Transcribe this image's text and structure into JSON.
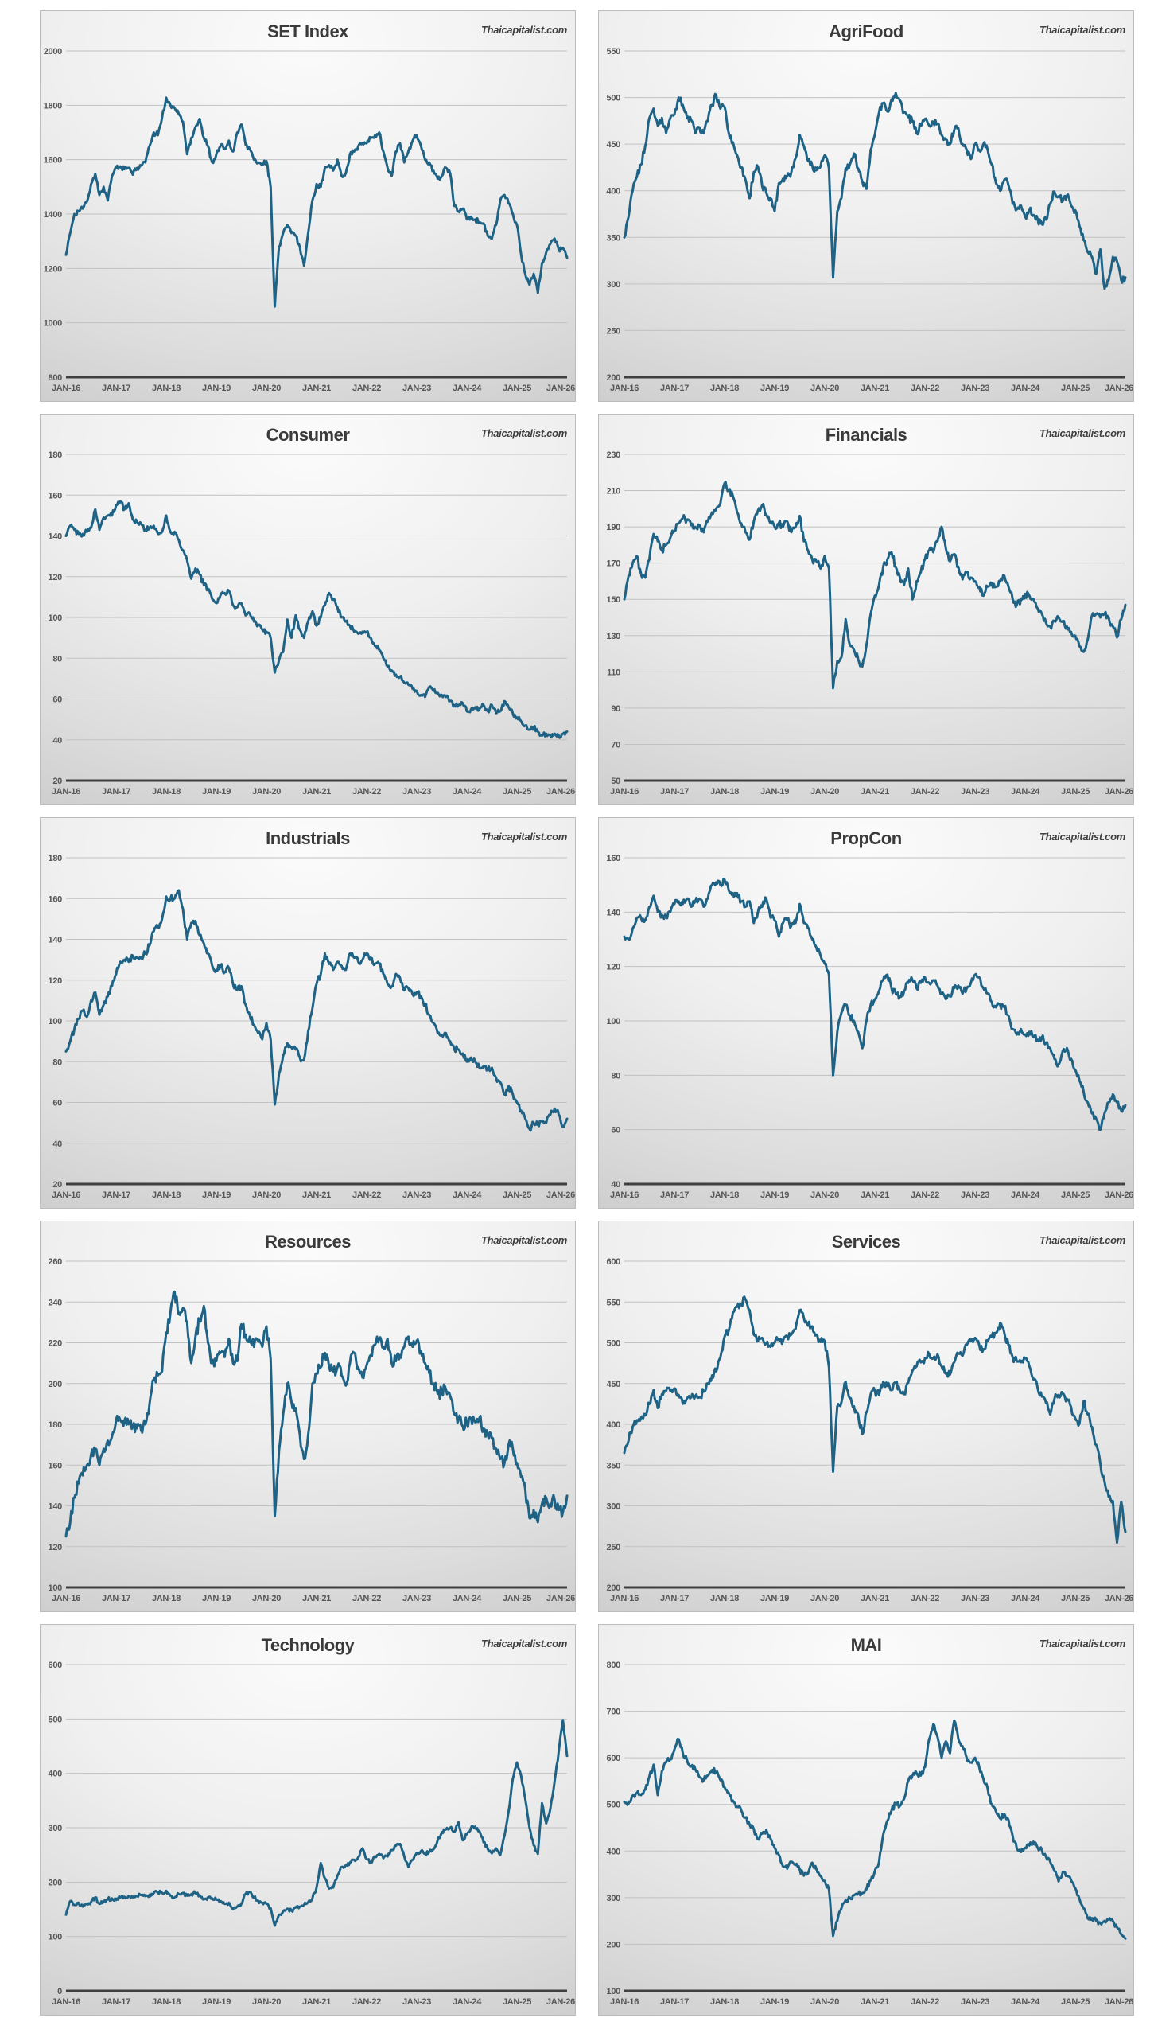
{
  "page": {
    "watermark": "Thaicapitalist.com"
  },
  "colors": {
    "line": "#1e6385",
    "grid": "#c1c1c1",
    "axis": "#3f3f3f",
    "label": "#575757",
    "panel_border": "#bcbcbc"
  },
  "x_axis": {
    "labels": [
      "JAN-16",
      "JAN-17",
      "JAN-18",
      "JAN-19",
      "JAN-20",
      "JAN-21",
      "JAN-22",
      "JAN-23",
      "JAN-24",
      "JAN-25",
      "JAN-26"
    ]
  },
  "chart_data": [
    {
      "type": "line",
      "title": "SET Index",
      "ylim": [
        800,
        2000
      ],
      "ytick_step": 200,
      "grid": true,
      "legend": "none",
      "x_start": "JAN-16",
      "x_end": "JAN-26",
      "points_frequency": "monthly",
      "jitter": 10,
      "values": [
        1250,
        1330,
        1400,
        1410,
        1420,
        1445,
        1510,
        1548,
        1470,
        1500,
        1450,
        1540,
        1570,
        1575,
        1565,
        1570,
        1545,
        1570,
        1578,
        1590,
        1650,
        1700,
        1690,
        1755,
        1828,
        1800,
        1790,
        1768,
        1740,
        1620,
        1680,
        1720,
        1750,
        1680,
        1650,
        1590,
        1620,
        1650,
        1640,
        1670,
        1630,
        1700,
        1730,
        1655,
        1640,
        1600,
        1590,
        1580,
        1595,
        1500,
        1060,
        1280,
        1330,
        1360,
        1330,
        1320,
        1280,
        1210,
        1330,
        1450,
        1510,
        1500,
        1570,
        1580,
        1560,
        1600,
        1540,
        1550,
        1620,
        1630,
        1650,
        1660,
        1660,
        1680,
        1690,
        1700,
        1630,
        1570,
        1540,
        1630,
        1660,
        1590,
        1630,
        1670,
        1690,
        1650,
        1600,
        1590,
        1560,
        1530,
        1540,
        1570,
        1550,
        1430,
        1410,
        1420,
        1380,
        1390,
        1380,
        1370,
        1365,
        1320,
        1310,
        1360,
        1450,
        1470,
        1440,
        1400,
        1360,
        1250,
        1180,
        1140,
        1180,
        1110,
        1220,
        1260,
        1290,
        1310,
        1270,
        1275,
        1240
      ]
    },
    {
      "type": "line",
      "title": "AgriFood",
      "ylim": [
        200,
        550
      ],
      "ytick_step": 50,
      "grid": true,
      "legend": "none",
      "x_start": "JAN-16",
      "x_end": "JAN-26",
      "points_frequency": "monthly",
      "jitter": 4,
      "values": [
        350,
        372,
        400,
        415,
        428,
        448,
        478,
        488,
        470,
        478,
        462,
        478,
        482,
        500,
        492,
        478,
        476,
        462,
        468,
        462,
        475,
        492,
        503,
        488,
        490,
        462,
        452,
        438,
        425,
        412,
        392,
        420,
        426,
        405,
        398,
        392,
        378,
        408,
        413,
        416,
        420,
        435,
        460,
        448,
        432,
        427,
        422,
        426,
        438,
        424,
        307,
        378,
        392,
        424,
        428,
        440,
        424,
        410,
        402,
        444,
        460,
        484,
        494,
        485,
        498,
        505,
        497,
        484,
        479,
        474,
        462,
        470,
        477,
        470,
        474,
        472,
        460,
        455,
        450,
        465,
        467,
        450,
        444,
        434,
        450,
        444,
        450,
        444,
        428,
        408,
        400,
        412,
        406,
        386,
        380,
        384,
        372,
        379,
        374,
        369,
        364,
        369,
        386,
        399,
        394,
        389,
        395,
        384,
        379,
        362,
        347,
        334,
        329,
        311,
        337,
        295,
        304,
        329,
        324,
        304,
        307
      ]
    },
    {
      "type": "line",
      "title": "Consumer",
      "ylim": [
        20,
        180
      ],
      "ytick_step": 20,
      "grid": true,
      "legend": "none",
      "x_start": "JAN-16",
      "x_end": "JAN-26",
      "points_frequency": "monthly",
      "jitter": 1.3,
      "values": [
        140,
        145,
        143,
        141,
        141,
        142,
        144,
        153,
        143,
        149,
        150,
        150,
        155,
        157,
        153,
        156,
        148,
        147,
        146,
        143,
        144,
        145,
        141,
        142,
        150,
        142,
        142,
        138,
        133,
        128,
        119,
        124,
        121,
        116,
        114,
        109,
        107,
        111,
        112,
        113,
        106,
        105,
        107,
        101,
        102,
        98,
        96,
        94,
        93,
        90,
        73,
        79,
        83,
        99,
        90,
        101,
        94,
        90,
        98,
        103,
        96,
        100,
        106,
        112,
        109,
        105,
        100,
        98,
        96,
        93,
        92,
        93,
        93,
        90,
        86,
        84,
        80,
        76,
        74,
        72,
        71,
        68,
        67,
        65,
        64,
        62,
        61,
        66,
        64,
        63,
        62,
        61,
        59,
        57,
        57,
        58,
        54,
        55,
        56,
        55,
        57,
        54,
        57,
        53,
        54,
        59,
        56,
        53,
        51,
        49,
        47,
        45,
        46,
        44,
        42,
        43,
        42,
        43,
        42,
        43,
        44
      ]
    },
    {
      "type": "line",
      "title": "Financials",
      "ylim": [
        50,
        230
      ],
      "ytick_step": 20,
      "grid": true,
      "legend": "none",
      "x_start": "JAN-16",
      "x_end": "JAN-26",
      "points_frequency": "monthly",
      "jitter": 2,
      "values": [
        150,
        163,
        170,
        174,
        164,
        162,
        172,
        186,
        182,
        177,
        180,
        184,
        188,
        192,
        195,
        194,
        191,
        190,
        191,
        187,
        193,
        198,
        200,
        203,
        214,
        210,
        207,
        198,
        192,
        187,
        183,
        193,
        199,
        202,
        197,
        192,
        190,
        192,
        190,
        193,
        187,
        190,
        196,
        182,
        177,
        172,
        171,
        167,
        174,
        167,
        101,
        116,
        118,
        139,
        125,
        122,
        117,
        113,
        125,
        142,
        152,
        158,
        168,
        172,
        176,
        168,
        162,
        158,
        167,
        150,
        160,
        165,
        172,
        177,
        176,
        182,
        190,
        178,
        171,
        175,
        168,
        161,
        165,
        162,
        160,
        157,
        152,
        157,
        159,
        157,
        160,
        163,
        157,
        150,
        147,
        150,
        153,
        152,
        150,
        145,
        142,
        137,
        135,
        138,
        140,
        138,
        135,
        132,
        130,
        124,
        121,
        128,
        141,
        142,
        140,
        142,
        140,
        135,
        129,
        139,
        147
      ]
    },
    {
      "type": "line",
      "title": "Industrials",
      "ylim": [
        20,
        180
      ],
      "ytick_step": 20,
      "grid": true,
      "legend": "none",
      "x_start": "JAN-16",
      "x_end": "JAN-26",
      "points_frequency": "monthly",
      "jitter": 1.6,
      "values": [
        85,
        90,
        96,
        101,
        105,
        102,
        110,
        114,
        103,
        108,
        112,
        117,
        123,
        129,
        130,
        129,
        132,
        131,
        131,
        133,
        137,
        144,
        146,
        150,
        161,
        160,
        160,
        164,
        155,
        140,
        148,
        149,
        142,
        138,
        133,
        127,
        125,
        127,
        124,
        126,
        118,
        115,
        117,
        108,
        103,
        98,
        94,
        91,
        99,
        91,
        59,
        74,
        83,
        89,
        87,
        86,
        82,
        81,
        95,
        106,
        118,
        123,
        133,
        128,
        125,
        129,
        127,
        125,
        133,
        131,
        129,
        130,
        133,
        131,
        128,
        128,
        123,
        118,
        117,
        123,
        121,
        115,
        116,
        113,
        114,
        112,
        108,
        103,
        99,
        94,
        93,
        94,
        90,
        86,
        86,
        84,
        80,
        82,
        80,
        77,
        78,
        76,
        77,
        72,
        70,
        64,
        68,
        64,
        60,
        56,
        52,
        47,
        50,
        49,
        51,
        50,
        54,
        57,
        54,
        48,
        52
      ]
    },
    {
      "type": "line",
      "title": "PropCon",
      "ylim": [
        40,
        160
      ],
      "ytick_step": 20,
      "grid": true,
      "legend": "none",
      "x_start": "JAN-16",
      "x_end": "JAN-26",
      "points_frequency": "monthly",
      "jitter": 1.3,
      "values": [
        131,
        130,
        134,
        138,
        138,
        137,
        142,
        146,
        140,
        139,
        138,
        140,
        143,
        144,
        143,
        145,
        142,
        144,
        145,
        142,
        145,
        150,
        151,
        150,
        152,
        148,
        147,
        147,
        144,
        142,
        144,
        136,
        140,
        142,
        145,
        138,
        137,
        131,
        136,
        137,
        135,
        136,
        143,
        136,
        134,
        130,
        127,
        124,
        121,
        117,
        80,
        96,
        103,
        106,
        102,
        100,
        96,
        90,
        100,
        106,
        108,
        111,
        115,
        117,
        112,
        110,
        109,
        111,
        114,
        115,
        112,
        114,
        116,
        114,
        115,
        113,
        110,
        108,
        109,
        112,
        113,
        110,
        112,
        114,
        117,
        116,
        112,
        110,
        107,
        105,
        106,
        105,
        102,
        97,
        95,
        97,
        95,
        96,
        94,
        93,
        94,
        92,
        90,
        86,
        84,
        89,
        90,
        86,
        82,
        78,
        74,
        70,
        66,
        64,
        60,
        66,
        70,
        73,
        70,
        67,
        69
      ]
    },
    {
      "type": "line",
      "title": "Resources",
      "ylim": [
        100,
        260
      ],
      "ytick_step": 20,
      "grid": true,
      "legend": "none",
      "x_start": "JAN-16",
      "x_end": "JAN-26",
      "points_frequency": "monthly",
      "jitter": 3,
      "values": [
        125,
        132,
        144,
        151,
        155,
        160,
        165,
        168,
        160,
        168,
        172,
        174,
        182,
        182,
        182,
        180,
        179,
        178,
        177,
        180,
        190,
        202,
        204,
        206,
        225,
        235,
        245,
        234,
        237,
        230,
        210,
        223,
        231,
        238,
        220,
        210,
        211,
        215,
        213,
        222,
        210,
        211,
        229,
        224,
        223,
        218,
        221,
        218,
        228,
        212,
        135,
        167,
        185,
        200,
        191,
        188,
        175,
        163,
        175,
        200,
        205,
        208,
        215,
        208,
        206,
        208,
        204,
        199,
        210,
        215,
        208,
        203,
        209,
        214,
        219,
        222,
        218,
        222,
        210,
        211,
        214,
        218,
        223,
        218,
        221,
        216,
        210,
        205,
        200,
        195,
        196,
        197,
        194,
        185,
        182,
        179,
        181,
        183,
        181,
        183,
        178,
        175,
        173,
        168,
        163,
        161,
        170,
        168,
        161,
        154,
        148,
        134,
        138,
        132,
        141,
        144,
        141,
        143,
        138,
        137,
        145
      ]
    },
    {
      "type": "line",
      "title": "Services",
      "ylim": [
        200,
        600
      ],
      "ytick_step": 50,
      "grid": true,
      "legend": "none",
      "x_start": "JAN-16",
      "x_end": "JAN-26",
      "points_frequency": "monthly",
      "jitter": 5,
      "values": [
        365,
        380,
        397,
        405,
        408,
        411,
        425,
        442,
        420,
        437,
        441,
        441,
        444,
        436,
        425,
        432,
        433,
        435,
        433,
        440,
        450,
        460,
        465,
        482,
        507,
        515,
        537,
        544,
        548,
        553,
        540,
        510,
        502,
        506,
        500,
        495,
        500,
        505,
        502,
        508,
        510,
        517,
        540,
        530,
        521,
        520,
        510,
        501,
        502,
        470,
        342,
        422,
        427,
        452,
        432,
        422,
        412,
        388,
        415,
        437,
        441,
        436,
        452,
        447,
        442,
        451,
        441,
        437,
        451,
        466,
        471,
        476,
        481,
        486,
        481,
        486,
        471,
        462,
        461,
        476,
        487,
        484,
        497,
        502,
        506,
        497,
        492,
        502,
        507,
        512,
        524,
        512,
        497,
        482,
        477,
        476,
        481,
        471,
        455,
        444,
        434,
        426,
        412,
        431,
        436,
        438,
        431,
        421,
        407,
        401,
        428,
        412,
        397,
        375,
        352,
        330,
        311,
        306,
        255,
        305,
        268
      ]
    },
    {
      "type": "line",
      "title": "Technology",
      "ylim": [
        0,
        600
      ],
      "ytick_step": 100,
      "grid": true,
      "legend": "none",
      "x_start": "JAN-16",
      "x_end": "JAN-26",
      "points_frequency": "monthly",
      "jitter": 3.5,
      "values": [
        140,
        165,
        158,
        162,
        155,
        160,
        163,
        172,
        160,
        165,
        168,
        170,
        167,
        172,
        173,
        175,
        172,
        175,
        176,
        174,
        177,
        180,
        182,
        180,
        184,
        175,
        172,
        178,
        180,
        175,
        178,
        180,
        176,
        168,
        172,
        170,
        168,
        165,
        160,
        162,
        150,
        155,
        160,
        178,
        182,
        172,
        166,
        162,
        160,
        152,
        120,
        140,
        146,
        151,
        148,
        153,
        155,
        158,
        163,
        170,
        190,
        235,
        207,
        188,
        190,
        212,
        228,
        231,
        236,
        241,
        246,
        262,
        242,
        236,
        246,
        252,
        244,
        247,
        259,
        267,
        270,
        247,
        228,
        241,
        254,
        257,
        252,
        256,
        260,
        277,
        292,
        297,
        300,
        292,
        310,
        277,
        288,
        300,
        302,
        294,
        273,
        261,
        253,
        262,
        250,
        285,
        330,
        390,
        420,
        395,
        352,
        300,
        268,
        252,
        345,
        308,
        335,
        385,
        440,
        498,
        432
      ]
    },
    {
      "type": "line",
      "title": "MAI",
      "ylim": [
        100,
        800
      ],
      "ytick_step": 100,
      "grid": true,
      "legend": "none",
      "x_start": "JAN-16",
      "x_end": "JAN-26",
      "points_frequency": "monthly",
      "jitter": 6,
      "values": [
        505,
        502,
        519,
        524,
        520,
        532,
        560,
        585,
        520,
        572,
        590,
        597,
        618,
        640,
        610,
        595,
        582,
        575,
        558,
        552,
        562,
        574,
        570,
        552,
        537,
        525,
        508,
        495,
        487,
        472,
        457,
        447,
        425,
        437,
        445,
        427,
        407,
        392,
        367,
        362,
        377,
        370,
        361,
        347,
        352,
        375,
        361,
        346,
        336,
        317,
        218,
        250,
        277,
        295,
        300,
        305,
        307,
        310,
        318,
        337,
        357,
        377,
        435,
        465,
        487,
        502,
        497,
        512,
        550,
        562,
        567,
        562,
        580,
        640,
        672,
        645,
        600,
        635,
        610,
        680,
        640,
        625,
        600,
        590,
        600,
        580,
        555,
        535,
        500,
        485,
        470,
        480,
        467,
        432,
        405,
        398,
        407,
        412,
        420,
        407,
        402,
        387,
        377,
        357,
        335,
        355,
        347,
        337,
        320,
        297,
        277,
        255,
        256,
        250,
        246,
        250,
        253,
        250,
        236,
        221,
        212
      ]
    }
  ]
}
